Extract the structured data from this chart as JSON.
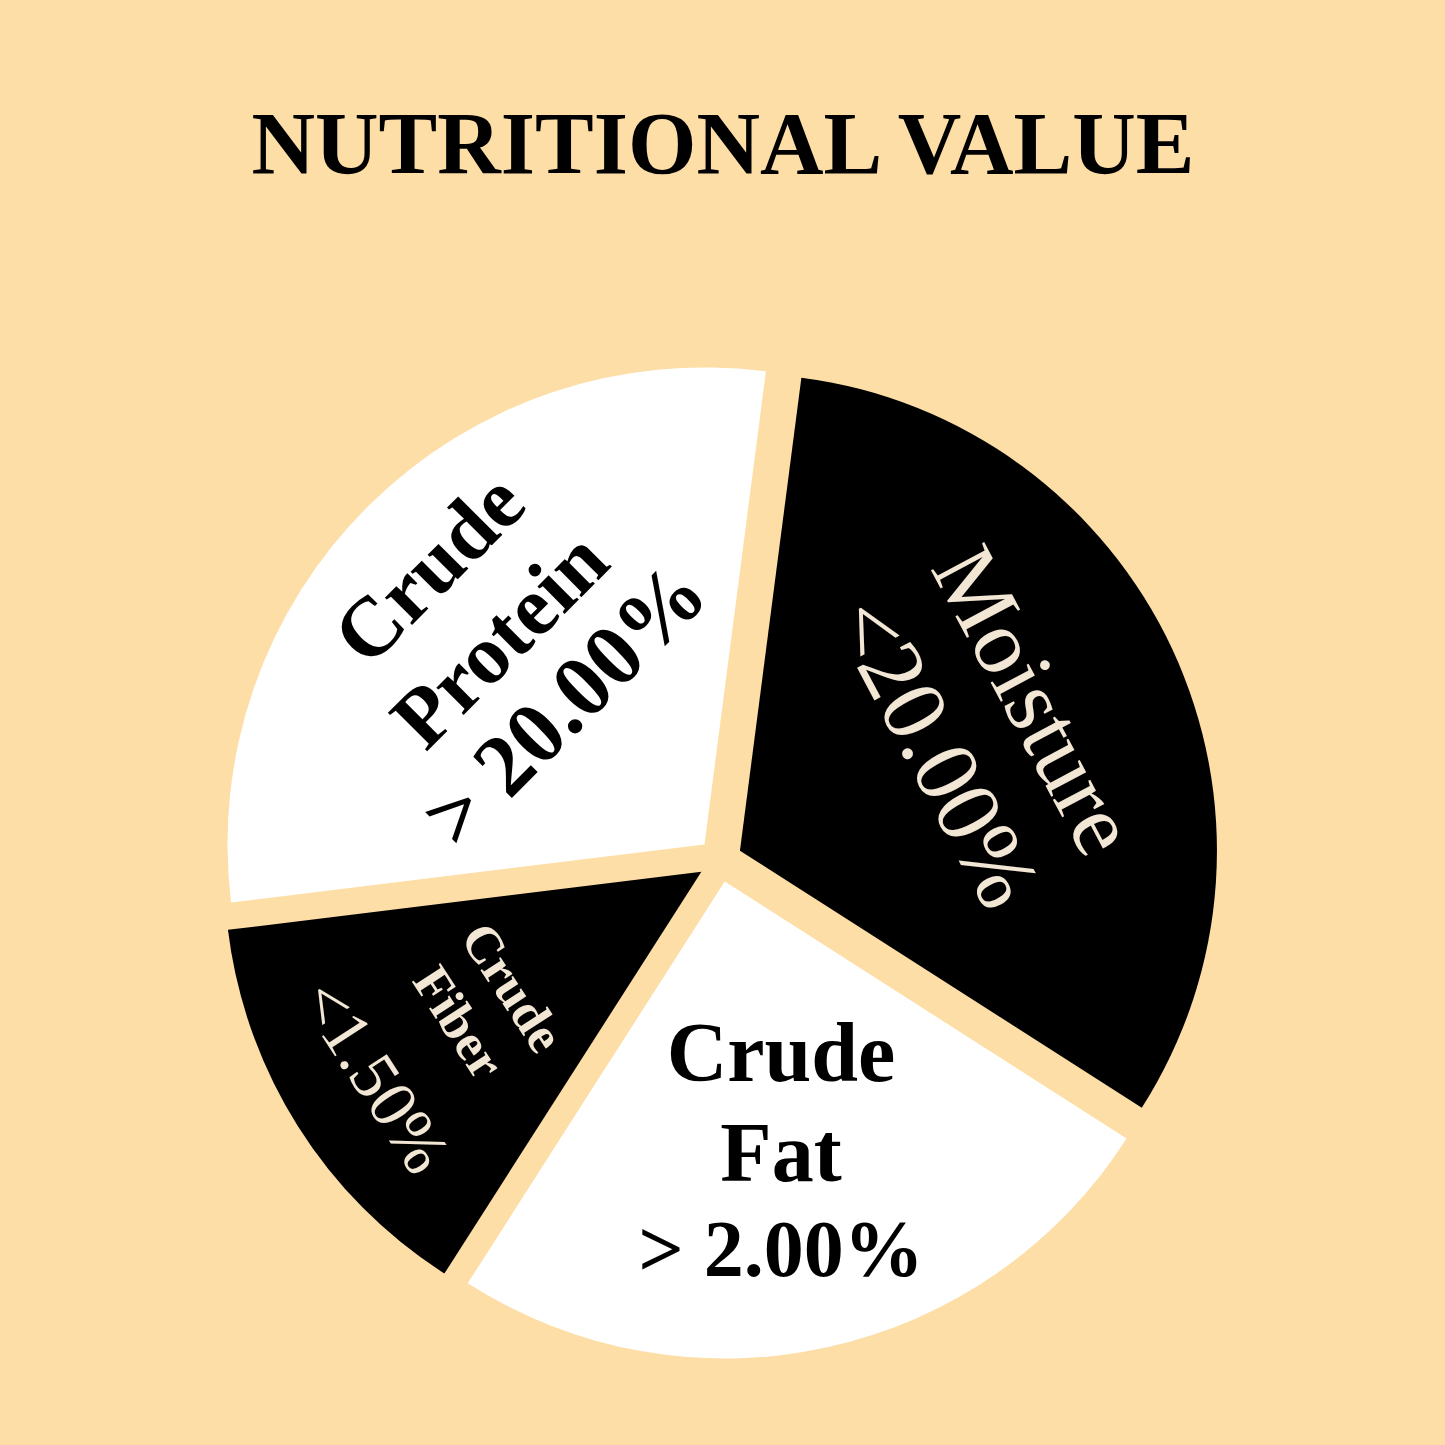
{
  "chart_data": {
    "type": "pie",
    "title": "NUTRITIONAL VALUE",
    "categories": [
      "Crude Protein",
      "Moisture",
      "Crude Fat",
      "Crude Fiber"
    ],
    "values": [
      29,
      32,
      25,
      14
    ],
    "colors": [
      "#ffffff",
      "#000000",
      "#ffffff",
      "#000000"
    ],
    "value_labels": [
      "> 20.00%",
      "<20.00%",
      "> 2.00%",
      "<1.50%"
    ]
  }
}
